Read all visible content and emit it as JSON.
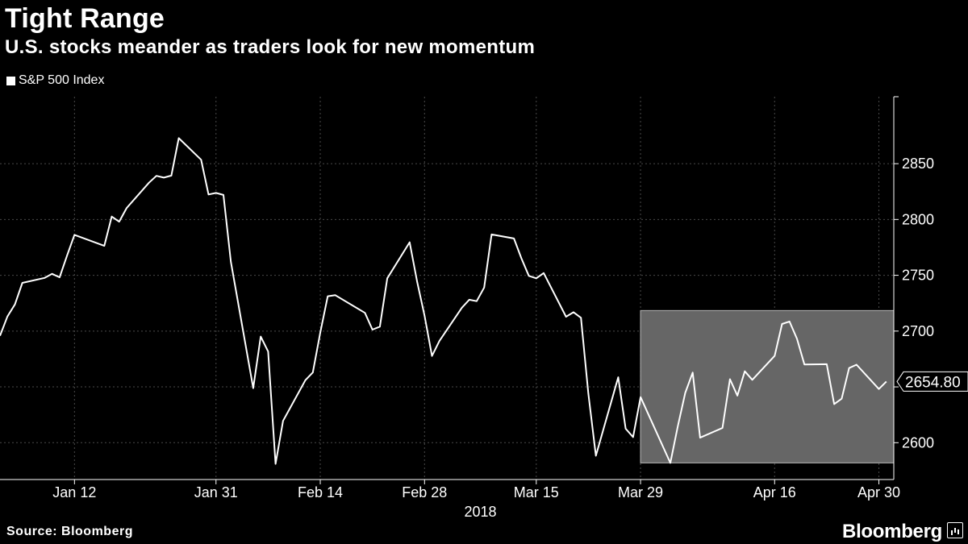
{
  "header": {
    "title": "Tight Range",
    "subtitle": "U.S. stocks meander as traders look for new momentum"
  },
  "legend": {
    "label": "S&P 500 Index"
  },
  "footer": {
    "source": "Source: Bloomberg",
    "brand": "Bloomberg"
  },
  "colors": {
    "background": "#000000",
    "line": "#ffffff",
    "highlight_box": "#666666",
    "grid": "#4a4a4a"
  },
  "chart_data": {
    "type": "line",
    "series": [
      {
        "name": "S&P 500 Index",
        "x": [
          "2018-01-02",
          "2018-01-03",
          "2018-01-04",
          "2018-01-05",
          "2018-01-08",
          "2018-01-09",
          "2018-01-10",
          "2018-01-11",
          "2018-01-12",
          "2018-01-16",
          "2018-01-17",
          "2018-01-18",
          "2018-01-19",
          "2018-01-22",
          "2018-01-23",
          "2018-01-24",
          "2018-01-25",
          "2018-01-26",
          "2018-01-29",
          "2018-01-30",
          "2018-01-31",
          "2018-02-01",
          "2018-02-02",
          "2018-02-05",
          "2018-02-06",
          "2018-02-07",
          "2018-02-08",
          "2018-02-09",
          "2018-02-12",
          "2018-02-13",
          "2018-02-14",
          "2018-02-15",
          "2018-02-16",
          "2018-02-20",
          "2018-02-21",
          "2018-02-22",
          "2018-02-23",
          "2018-02-26",
          "2018-02-27",
          "2018-02-28",
          "2018-03-01",
          "2018-03-02",
          "2018-03-05",
          "2018-03-06",
          "2018-03-07",
          "2018-03-08",
          "2018-03-09",
          "2018-03-12",
          "2018-03-13",
          "2018-03-14",
          "2018-03-15",
          "2018-03-16",
          "2018-03-19",
          "2018-03-20",
          "2018-03-21",
          "2018-03-22",
          "2018-03-23",
          "2018-03-26",
          "2018-03-27",
          "2018-03-28",
          "2018-03-29",
          "2018-04-02",
          "2018-04-03",
          "2018-04-04",
          "2018-04-05",
          "2018-04-06",
          "2018-04-09",
          "2018-04-10",
          "2018-04-11",
          "2018-04-12",
          "2018-04-13",
          "2018-04-16",
          "2018-04-17",
          "2018-04-18",
          "2018-04-19",
          "2018-04-20",
          "2018-04-23",
          "2018-04-24",
          "2018-04-25",
          "2018-04-26",
          "2018-04-27",
          "2018-04-30",
          "2018-05-01"
        ],
        "values": [
          2695.8,
          2713.1,
          2723.9,
          2743.2,
          2747.7,
          2751.3,
          2748.2,
          2767.6,
          2786.2,
          2776.4,
          2802.6,
          2798.0,
          2810.3,
          2832.97,
          2839.1,
          2837.5,
          2839.3,
          2872.9,
          2853.5,
          2822.4,
          2823.8,
          2821.98,
          2762.1,
          2648.9,
          2695.1,
          2681.7,
          2581.0,
          2619.6,
          2656.0,
          2662.9,
          2698.6,
          2731.2,
          2732.2,
          2716.3,
          2701.3,
          2703.96,
          2747.3,
          2779.6,
          2744.3,
          2713.8,
          2677.7,
          2691.3,
          2720.9,
          2728.1,
          2726.8,
          2738.97,
          2786.6,
          2783.0,
          2765.3,
          2749.5,
          2747.3,
          2752.0,
          2712.9,
          2716.9,
          2711.9,
          2643.7,
          2588.3,
          2658.6,
          2612.6,
          2605.0,
          2640.9,
          2581.9,
          2614.5,
          2644.7,
          2662.8,
          2604.5,
          2613.2,
          2656.9,
          2642.2,
          2663.99,
          2656.3,
          2677.8,
          2706.4,
          2708.6,
          2693.1,
          2670.1,
          2670.3,
          2634.6,
          2639.4,
          2666.9,
          2669.9,
          2648.1,
          2654.8
        ]
      }
    ],
    "x_ticks": [
      {
        "date": "2018-01-12",
        "label": "Jan 12"
      },
      {
        "date": "2018-01-31",
        "label": "Jan 31"
      },
      {
        "date": "2018-02-14",
        "label": "Feb 14"
      },
      {
        "date": "2018-02-28",
        "label": "Feb 28"
      },
      {
        "date": "2018-03-15",
        "label": "Mar 15"
      },
      {
        "date": "2018-03-29",
        "label": "Mar 29"
      },
      {
        "date": "2018-04-16",
        "label": "Apr 16"
      },
      {
        "date": "2018-04-30",
        "label": "Apr 30"
      }
    ],
    "year_label": "2018",
    "y_ticks": [
      2600,
      2650,
      2700,
      2750,
      2800,
      2850
    ],
    "y_tick_labels": [
      "2600",
      "",
      "2700",
      "2750",
      "2800",
      "2850"
    ],
    "ylim": [
      2567,
      2910
    ],
    "xlim": [
      "2018-01-02",
      "2018-05-02"
    ],
    "grid": true,
    "y_axis_position": "right",
    "last_value_label": "2654.80",
    "highlight_range": {
      "x_start": "2018-03-29",
      "x_end": "2018-05-02",
      "y_min": 2581.9,
      "y_max": 2718.4
    }
  }
}
